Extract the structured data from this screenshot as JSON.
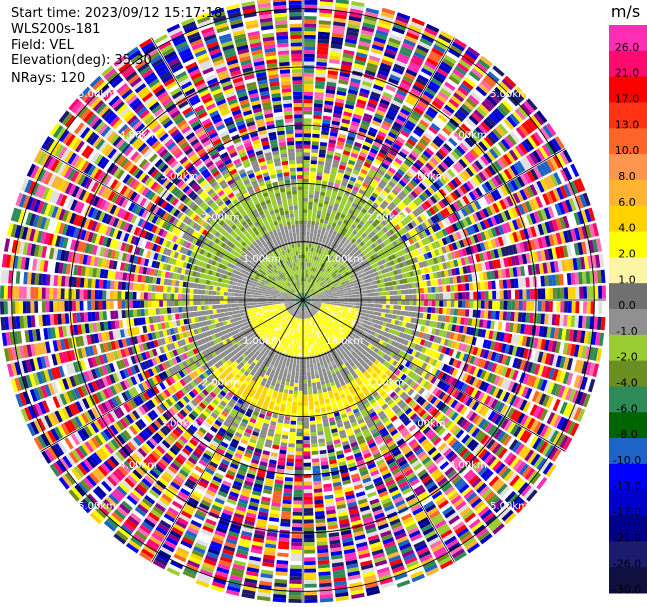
{
  "header": {
    "start_time": "Start time: 2023/09/12 15:17:18",
    "instrument": "WLS200s-181",
    "field": "Field: VEL",
    "elevation": "Elevation(deg): 35.30",
    "nrays": "NRays: 120"
  },
  "chart_data": {
    "type": "ppi",
    "field": "VEL",
    "elevation_deg": 35.3,
    "n_rays": 120,
    "range_rings": [
      {
        "label": "1.00km",
        "range_km": 1.0
      },
      {
        "label": "2.00km",
        "range_km": 2.0
      },
      {
        "label": "3.00km",
        "range_km": 3.0
      },
      {
        "label": "4.00km",
        "range_km": 4.0
      },
      {
        "label": "5.00km",
        "range_km": 5.0
      }
    ],
    "max_range_km": 5.2,
    "colorbar": {
      "unit": "m/s",
      "vmin": -30.0,
      "vmax": 30.0,
      "tick_labels": [
        "26.0",
        "21.0",
        "17.0",
        "13.0",
        "10.0",
        "8.0",
        "6.0",
        "4.0",
        "2.0",
        "1.0",
        "0.0",
        "-1.0",
        "-2.0",
        "-4.0",
        "-6.0",
        "-8.0",
        "-10.0",
        "-13.0",
        "-17.0",
        "-21.0",
        "-26.0",
        "-30.0"
      ],
      "colors": [
        "#ff2db4",
        "#ff0a6e",
        "#ff0000",
        "#ff3214",
        "#ff6428",
        "#ff9650",
        "#ffb432",
        "#ffd200",
        "#ffff00",
        "#fdf5a6",
        "#707070",
        "#909090",
        "#9acd32",
        "#6b8e23",
        "#2e8b57",
        "#006400",
        "#1e64c8",
        "#0000ff",
        "#0000cd",
        "#00008b",
        "#1c1c6e",
        "#101040"
      ]
    },
    "data_summary": "Inner ~1.3 km: near-zero gray with yellow (1–4 m/s) to the south and yellow-green (-1 to -2 m/s) to the north; beyond ~2 km noisy multi-colored returns spanning the full scale."
  }
}
